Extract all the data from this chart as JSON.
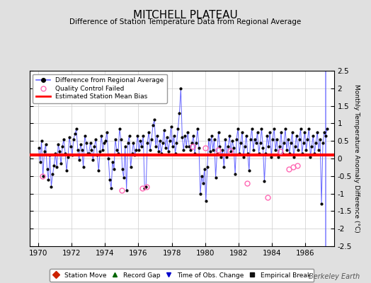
{
  "title": "MITCHELL PLATEAU",
  "subtitle": "Difference of Station Temperature Data from Regional Average",
  "ylabel": "Monthly Temperature Anomaly Difference (°C)",
  "xlim": [
    1969.5,
    1987.7
  ],
  "ylim": [
    -2.5,
    2.5
  ],
  "yticks": [
    -2.5,
    -2,
    -1.5,
    -1,
    -0.5,
    0,
    0.5,
    1,
    1.5,
    2,
    2.5
  ],
  "xticks": [
    1970,
    1972,
    1974,
    1976,
    1978,
    1980,
    1982,
    1984,
    1986
  ],
  "bias_line_y": 0.1,
  "bias_color": "#ff0000",
  "series_color": "#6666ff",
  "dot_color": "#000000",
  "background_color": "#e0e0e0",
  "plot_bg_color": "#ffffff",
  "watermark": "Berkeley Earth",
  "time_obs_change_x": 1987.2,
  "qc_failed_x": [
    1970.25,
    1975.0,
    1976.25,
    1976.5,
    1979.25,
    1980.0,
    1980.75,
    1981.5,
    1982.5,
    1983.75,
    1984.5,
    1985.0,
    1985.25,
    1985.5
  ],
  "qc_failed_y": [
    -0.5,
    -0.9,
    -0.85,
    -0.8,
    0.35,
    0.3,
    0.25,
    0.22,
    -0.7,
    -1.1,
    0.2,
    -0.3,
    -0.25,
    -0.2
  ],
  "data_x": [
    1970.042,
    1970.125,
    1970.208,
    1970.292,
    1970.375,
    1970.458,
    1970.542,
    1970.625,
    1970.708,
    1970.792,
    1970.875,
    1970.958,
    1971.042,
    1971.125,
    1971.208,
    1971.292,
    1971.375,
    1971.458,
    1971.542,
    1971.625,
    1971.708,
    1971.792,
    1971.875,
    1971.958,
    1972.042,
    1972.125,
    1972.208,
    1972.292,
    1972.375,
    1972.458,
    1972.542,
    1972.625,
    1972.708,
    1972.792,
    1972.875,
    1972.958,
    1973.042,
    1973.125,
    1973.208,
    1973.292,
    1973.375,
    1973.458,
    1973.542,
    1973.625,
    1973.708,
    1973.792,
    1973.875,
    1973.958,
    1974.042,
    1974.125,
    1974.208,
    1974.292,
    1974.375,
    1974.458,
    1974.542,
    1974.625,
    1974.708,
    1974.792,
    1974.875,
    1974.958,
    1975.042,
    1975.125,
    1975.208,
    1975.292,
    1975.375,
    1975.458,
    1975.542,
    1975.625,
    1975.708,
    1975.792,
    1975.875,
    1975.958,
    1976.042,
    1976.125,
    1976.208,
    1976.292,
    1976.375,
    1976.458,
    1976.542,
    1976.625,
    1976.708,
    1976.792,
    1976.875,
    1976.958,
    1977.042,
    1977.125,
    1977.208,
    1977.292,
    1977.375,
    1977.458,
    1977.542,
    1977.625,
    1977.708,
    1977.792,
    1977.875,
    1977.958,
    1978.042,
    1978.125,
    1978.208,
    1978.292,
    1978.375,
    1978.458,
    1978.542,
    1978.625,
    1978.708,
    1978.792,
    1978.875,
    1978.958,
    1979.042,
    1979.125,
    1979.208,
    1979.292,
    1979.375,
    1979.458,
    1979.542,
    1979.625,
    1979.708,
    1979.792,
    1979.875,
    1979.958,
    1980.042,
    1980.125,
    1980.208,
    1980.292,
    1980.375,
    1980.458,
    1980.542,
    1980.625,
    1980.708,
    1980.792,
    1980.875,
    1980.958,
    1981.042,
    1981.125,
    1981.208,
    1981.292,
    1981.375,
    1981.458,
    1981.542,
    1981.625,
    1981.708,
    1981.792,
    1981.875,
    1981.958,
    1982.042,
    1982.125,
    1982.208,
    1982.292,
    1982.375,
    1982.458,
    1982.542,
    1982.625,
    1982.708,
    1982.792,
    1982.875,
    1982.958,
    1983.042,
    1983.125,
    1983.208,
    1983.292,
    1983.375,
    1983.458,
    1983.542,
    1983.625,
    1983.708,
    1983.792,
    1983.875,
    1983.958,
    1984.042,
    1984.125,
    1984.208,
    1984.292,
    1984.375,
    1984.458,
    1984.542,
    1984.625,
    1984.708,
    1984.792,
    1984.875,
    1984.958,
    1985.042,
    1985.125,
    1985.208,
    1985.292,
    1985.375,
    1985.458,
    1985.542,
    1985.625,
    1985.708,
    1985.792,
    1985.875,
    1985.958,
    1986.042,
    1986.125,
    1986.208,
    1986.292,
    1986.375,
    1986.458,
    1986.542,
    1986.625,
    1986.708,
    1986.792,
    1986.875,
    1986.958,
    1987.042,
    1987.125,
    1987.208,
    1987.292
  ],
  "data_y": [
    0.3,
    -0.1,
    0.5,
    -0.5,
    0.2,
    0.4,
    -0.3,
    -0.6,
    0.1,
    -0.8,
    -0.45,
    -0.2,
    0.15,
    -0.25,
    0.4,
    0.2,
    -0.15,
    0.35,
    0.55,
    0.15,
    -0.35,
    0.05,
    0.6,
    0.35,
    0.1,
    0.55,
    0.7,
    0.85,
    0.25,
    -0.05,
    0.4,
    0.25,
    -0.25,
    0.65,
    0.45,
    0.15,
    0.15,
    0.45,
    0.25,
    -0.05,
    0.35,
    0.55,
    0.1,
    -0.35,
    0.2,
    0.65,
    0.25,
    0.45,
    0.5,
    0.75,
    0.0,
    -0.6,
    -0.85,
    -0.1,
    -0.3,
    0.55,
    0.25,
    0.15,
    0.85,
    0.55,
    -0.3,
    -0.55,
    0.35,
    -0.9,
    0.45,
    0.65,
    -0.25,
    0.15,
    0.45,
    0.1,
    0.25,
    0.65,
    0.25,
    0.5,
    0.35,
    0.65,
    -0.85,
    -0.8,
    0.45,
    0.75,
    0.25,
    0.55,
    0.95,
    1.1,
    0.35,
    0.65,
    0.2,
    0.5,
    0.15,
    0.45,
    0.8,
    0.3,
    0.6,
    0.2,
    0.5,
    0.9,
    0.35,
    0.65,
    0.15,
    0.45,
    0.85,
    1.3,
    2.0,
    0.6,
    0.25,
    0.65,
    0.35,
    0.75,
    0.35,
    0.25,
    0.45,
    0.65,
    0.15,
    0.45,
    0.85,
    0.3,
    -1.0,
    -0.5,
    -0.7,
    -0.3,
    -1.2,
    -0.25,
    0.55,
    0.2,
    0.65,
    0.25,
    0.55,
    -0.55,
    0.15,
    0.75,
    0.35,
    0.05,
    0.25,
    -0.25,
    0.55,
    0.05,
    0.35,
    0.65,
    0.2,
    0.5,
    0.3,
    -0.45,
    0.55,
    0.85,
    0.15,
    0.45,
    0.75,
    0.05,
    0.35,
    0.65,
    0.15,
    -0.35,
    0.55,
    0.85,
    0.25,
    0.55,
    0.45,
    0.75,
    0.15,
    0.45,
    0.85,
    0.3,
    -0.65,
    0.15,
    0.65,
    0.35,
    0.75,
    0.05,
    0.55,
    0.85,
    0.25,
    0.55,
    0.05,
    0.35,
    0.75,
    0.15,
    0.45,
    0.85,
    0.25,
    0.55,
    0.15,
    0.45,
    0.75,
    0.05,
    0.35,
    0.65,
    0.25,
    0.55,
    0.85,
    0.15,
    0.45,
    0.75,
    0.25,
    0.55,
    0.85,
    0.05,
    0.35,
    0.65,
    0.15,
    0.45,
    0.75,
    0.25,
    0.55,
    -1.3,
    0.45,
    0.75,
    0.65,
    0.85
  ]
}
